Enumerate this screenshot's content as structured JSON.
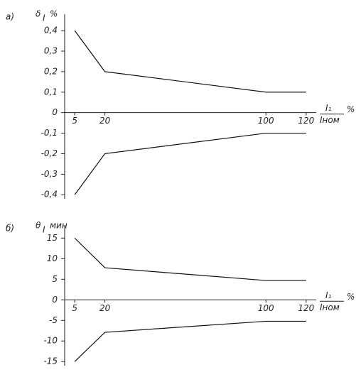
{
  "chart_data": [
    {
      "type": "line",
      "panel_label": "а)",
      "y_label": {
        "symbol": "δ",
        "subscript": "I",
        "unit": "%"
      },
      "x_label": {
        "numerator": "I₁",
        "denominator": "Iном",
        "unit": "%"
      },
      "x": [
        5,
        20,
        100,
        120
      ],
      "series": [
        {
          "color": "#111111",
          "values": [
            0.4,
            0.2,
            0.1,
            0.1
          ]
        },
        {
          "color": "#111111",
          "values": [
            -0.4,
            -0.2,
            -0.1,
            -0.1
          ]
        }
      ],
      "xlim": [
        0,
        125
      ],
      "xticks": [
        5,
        20,
        100,
        120
      ],
      "ylim": [
        -0.42,
        0.48
      ],
      "yticks": [
        {
          "value": 0.4,
          "label": "0,4"
        },
        {
          "value": 0.3,
          "label": "0,3"
        },
        {
          "value": 0.2,
          "label": "0,2"
        },
        {
          "value": 0.1,
          "label": "0,1"
        },
        0,
        {
          "value": -0.1,
          "label": "-0,1"
        },
        {
          "value": -0.2,
          "label": "-0,2"
        },
        {
          "value": -0.3,
          "label": "-0,3"
        },
        {
          "value": -0.4,
          "label": "-0,4"
        }
      ]
    },
    {
      "type": "line",
      "panel_label": "б)",
      "y_label": {
        "symbol": "θ",
        "subscript": "I",
        "unit": "мин"
      },
      "x_label": {
        "numerator": "I₁",
        "denominator": "Iном",
        "unit": "%"
      },
      "x": [
        5,
        20,
        100,
        120
      ],
      "series": [
        {
          "color": "#111111",
          "values": [
            15,
            7.8,
            4.7,
            4.7
          ]
        },
        {
          "color": "#111111",
          "values": [
            -15,
            -7.9,
            -5.2,
            -5.2
          ]
        }
      ],
      "xlim": [
        0,
        125
      ],
      "xticks": [
        5,
        20,
        100,
        120
      ],
      "ylim": [
        -16,
        18
      ],
      "yticks": [
        15,
        10,
        5,
        0,
        -5,
        -10,
        -15
      ]
    }
  ]
}
